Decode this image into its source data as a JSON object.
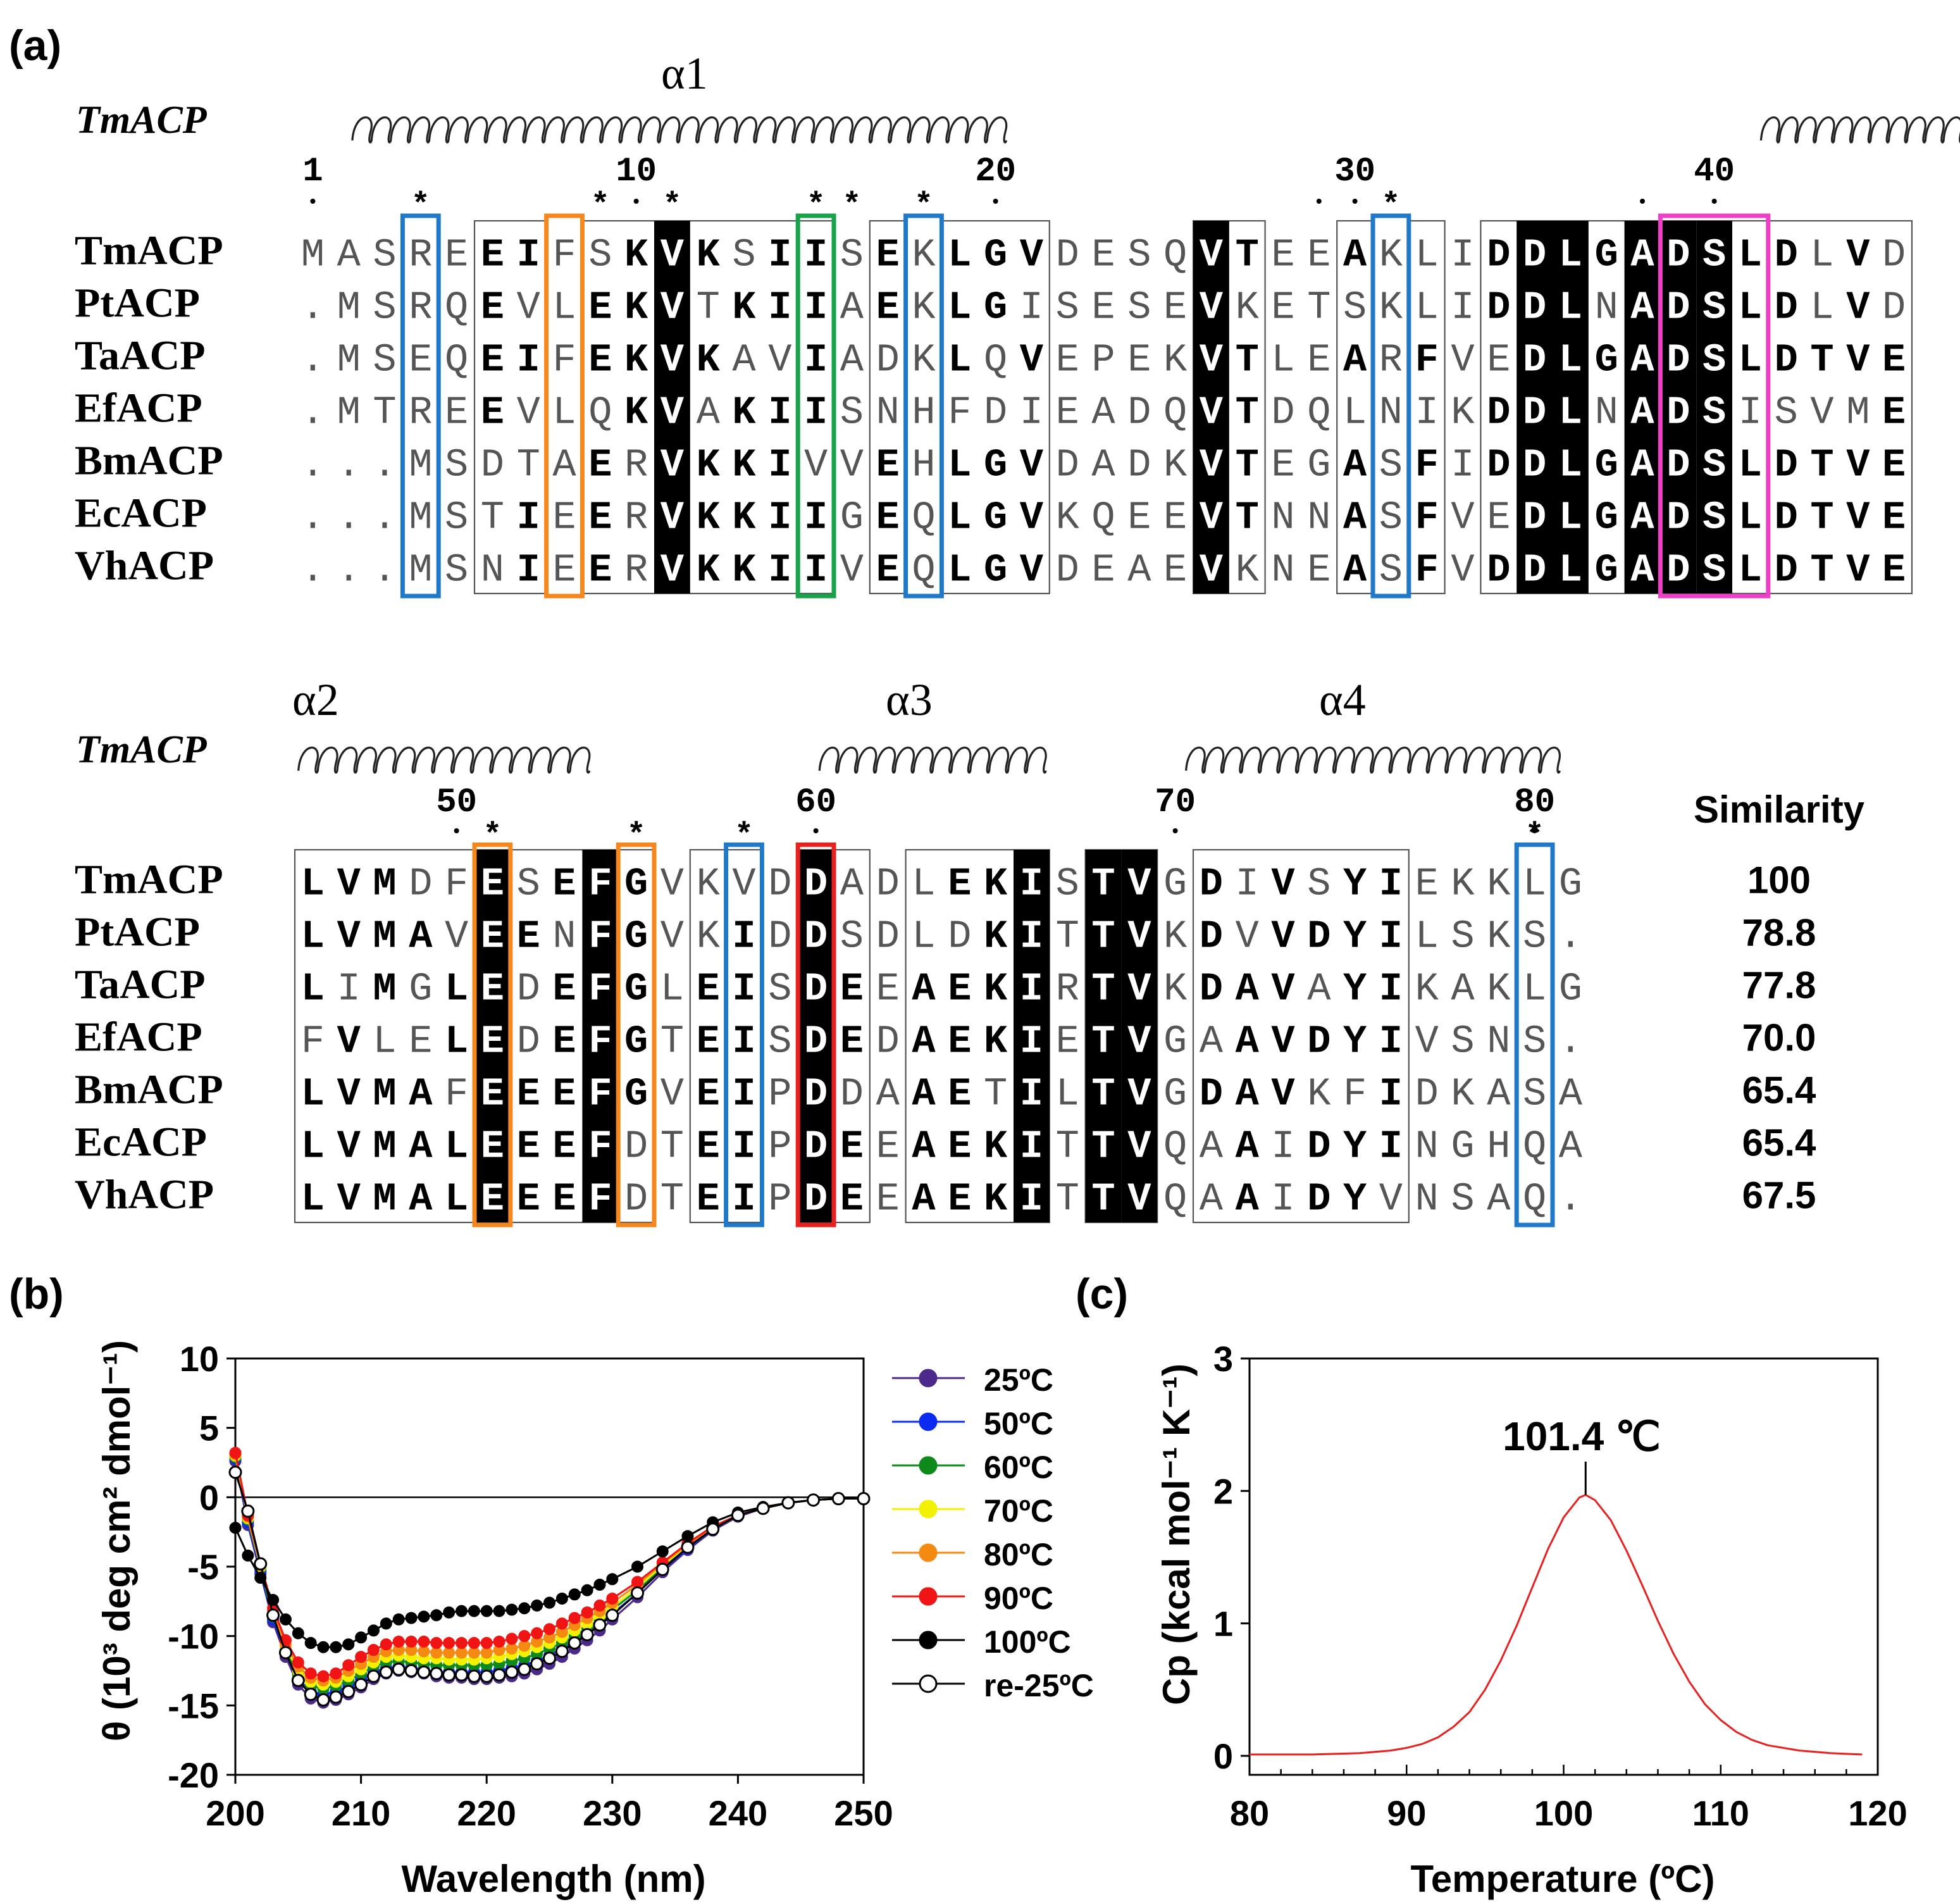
{
  "figure": {
    "panel_a_label": "(a)",
    "panel_b_label": "(b)",
    "panel_c_label": "(c)"
  },
  "alignment": {
    "structure_name": "TmACP",
    "helices": [
      "α1",
      "α2",
      "α3",
      "α4"
    ],
    "block1": {
      "number_labels": [
        "1",
        "10",
        "20",
        "30",
        "40"
      ],
      "rows": [
        {
          "name": "TmACP",
          "seq": "MASREEIFSKVKSIISEKLGVDESQVTEEAKLIDDLGADSLDLVD"
        },
        {
          "name": "PtACP",
          "seq": ".MSRQEVLEKVTKIIAEKLGISESEVKETSKLIDDLNADSLDLVD"
        },
        {
          "name": "TaACP",
          "seq": ".MSEQEIFEKVKAVIADKLQVEPEKVTLEARFVEDLGADSLDTVE"
        },
        {
          "name": "EfACP",
          "seq": ".MTREEVLQKVAKIISNHFDIEADQVTDQLNIKDDLNADSISVME"
        },
        {
          "name": "BmACP",
          "seq": "...MSDTAERVKKIVVEHLGVDADKVTEGASFIDDLGADSLDTVE"
        },
        {
          "name": "EcACP",
          "seq": "...MSTIEERVKKIIGEQLGVKQEEVTNNASFVEDLGADSLDTVE"
        },
        {
          "name": "VhACP",
          "seq": "...MSNIEERVKKIIVEQLGVDEAEVKNEASFVDDLGADSLDTVE"
        }
      ]
    },
    "block2": {
      "number_labels": [
        "50",
        "60",
        "70",
        "80"
      ],
      "similarity_header": "Similarity",
      "rows": [
        {
          "name": "TmACP",
          "seq": "LVMDFESEFGVKVDDADLEKISTVGDIVSYIEKKLG",
          "similarity": "100"
        },
        {
          "name": "PtACP",
          "seq": "LVMAVEENFGVKIDDSDLDKITTVKDVVDYILSKS.",
          "similarity": "78.8"
        },
        {
          "name": "TaACP",
          "seq": "LIMGLEDEFGLEISDEEAEKIRTVKDAVAYIKAKLG",
          "similarity": "77.8"
        },
        {
          "name": "EfACP",
          "seq": "FVLELEDEFGTEISDEDAEKIETVGAAVDYIVSNS.",
          "similarity": "70.0"
        },
        {
          "name": "BmACP",
          "seq": "LVMAFEEEFGVEIPDDAAETILTVGDAVKFIDKASA",
          "similarity": "65.4"
        },
        {
          "name": "EcACP",
          "seq": "LVMALEEEFDTEIPDEEAEKITTVQAAIDYINGHQA",
          "similarity": "65.4"
        },
        {
          "name": "VhACP",
          "seq": "LVMALEEEFDTEIPDEEAEKITTVQAAIDYVNSAQ.",
          "similarity": "67.5"
        }
      ]
    }
  },
  "chart_data": [
    {
      "type": "line",
      "xlabel": "Wavelength (nm)",
      "ylabel": "θ (10³ deg cm² dmol⁻¹)",
      "xlim": [
        200,
        250
      ],
      "ylim": [
        -20,
        10
      ],
      "xticks": [
        200,
        210,
        220,
        230,
        240,
        250
      ],
      "yticks": [
        -20,
        -15,
        -10,
        -5,
        0,
        5,
        10
      ],
      "legend_position": "right",
      "series": [
        {
          "name": "25ºC",
          "color": "#4b2a8c",
          "x": [
            200,
            201,
            202,
            203,
            204,
            205,
            206,
            207,
            208,
            209,
            210,
            211,
            212,
            213,
            214,
            215,
            216,
            217,
            218,
            219,
            220,
            221,
            222,
            223,
            224,
            225,
            226,
            227,
            228,
            229,
            230,
            232,
            234,
            236,
            238,
            240,
            242,
            244,
            246,
            248,
            250
          ],
          "y": [
            2.6,
            -2.0,
            -5.5,
            -9.0,
            -11.5,
            -13.5,
            -14.5,
            -14.8,
            -14.6,
            -14.2,
            -13.7,
            -13.1,
            -12.7,
            -12.5,
            -12.6,
            -12.7,
            -12.9,
            -13.0,
            -13.0,
            -13.1,
            -13.1,
            -13.0,
            -12.9,
            -12.7,
            -12.4,
            -12.0,
            -11.5,
            -10.9,
            -10.3,
            -9.6,
            -8.8,
            -7.2,
            -5.4,
            -3.8,
            -2.4,
            -1.4,
            -0.8,
            -0.4,
            -0.2,
            -0.1,
            -0.1
          ]
        },
        {
          "name": "50ºC",
          "color": "#0b2bf0",
          "x": [
            200,
            201,
            202,
            203,
            204,
            205,
            206,
            207,
            208,
            209,
            210,
            211,
            212,
            213,
            214,
            215,
            216,
            217,
            218,
            219,
            220,
            221,
            222,
            223,
            224,
            225,
            226,
            227,
            228,
            229,
            230,
            232,
            234,
            236,
            238,
            240,
            242,
            244,
            246,
            248,
            250
          ],
          "y": [
            2.8,
            -1.8,
            -5.3,
            -8.8,
            -11.2,
            -13.1,
            -14.0,
            -14.2,
            -14.0,
            -13.6,
            -13.1,
            -12.6,
            -12.3,
            -12.2,
            -12.3,
            -12.4,
            -12.6,
            -12.6,
            -12.6,
            -12.6,
            -12.6,
            -12.5,
            -12.3,
            -12.1,
            -11.8,
            -11.4,
            -10.9,
            -10.4,
            -9.8,
            -9.1,
            -8.4,
            -6.9,
            -5.2,
            -3.7,
            -2.3,
            -1.3,
            -0.8,
            -0.4,
            -0.2,
            -0.1,
            -0.1
          ]
        },
        {
          "name": "60ºC",
          "color": "#0e8a1c",
          "x": [
            200,
            201,
            202,
            203,
            204,
            205,
            206,
            207,
            208,
            209,
            210,
            211,
            212,
            213,
            214,
            215,
            216,
            217,
            218,
            219,
            220,
            221,
            222,
            223,
            224,
            225,
            226,
            227,
            228,
            229,
            230,
            232,
            234,
            236,
            238,
            240,
            242,
            244,
            246,
            248,
            250
          ],
          "y": [
            2.9,
            -1.6,
            -5.1,
            -8.6,
            -11.0,
            -12.8,
            -13.6,
            -13.8,
            -13.6,
            -13.2,
            -12.7,
            -12.2,
            -11.9,
            -11.8,
            -11.9,
            -12.0,
            -12.1,
            -12.1,
            -12.1,
            -12.1,
            -12.1,
            -12.0,
            -11.8,
            -11.6,
            -11.3,
            -10.9,
            -10.5,
            -10.0,
            -9.4,
            -8.8,
            -8.1,
            -6.7,
            -5.1,
            -3.6,
            -2.3,
            -1.3,
            -0.8,
            -0.4,
            -0.2,
            -0.1,
            -0.1
          ]
        },
        {
          "name": "70ºC",
          "color": "#f2f200",
          "x": [
            200,
            201,
            202,
            203,
            204,
            205,
            206,
            207,
            208,
            209,
            210,
            211,
            212,
            213,
            214,
            215,
            216,
            217,
            218,
            219,
            220,
            221,
            222,
            223,
            224,
            225,
            226,
            227,
            228,
            229,
            230,
            232,
            234,
            236,
            238,
            240,
            242,
            244,
            246,
            248,
            250
          ],
          "y": [
            3.0,
            -1.5,
            -5.0,
            -8.4,
            -10.8,
            -12.5,
            -13.3,
            -13.5,
            -13.3,
            -12.9,
            -12.4,
            -11.9,
            -11.5,
            -11.4,
            -11.5,
            -11.6,
            -11.6,
            -11.7,
            -11.7,
            -11.7,
            -11.6,
            -11.5,
            -11.3,
            -11.1,
            -10.8,
            -10.5,
            -10.1,
            -9.6,
            -9.1,
            -8.5,
            -7.9,
            -6.5,
            -4.9,
            -3.5,
            -2.2,
            -1.3,
            -0.8,
            -0.4,
            -0.2,
            -0.1,
            -0.1
          ]
        },
        {
          "name": "80ºC",
          "color": "#f58a12",
          "x": [
            200,
            201,
            202,
            203,
            204,
            205,
            206,
            207,
            208,
            209,
            210,
            211,
            212,
            213,
            214,
            215,
            216,
            217,
            218,
            219,
            220,
            221,
            222,
            223,
            224,
            225,
            226,
            227,
            228,
            229,
            230,
            232,
            234,
            236,
            238,
            240,
            242,
            244,
            246,
            248,
            250
          ],
          "y": [
            3.1,
            -1.4,
            -4.9,
            -8.2,
            -10.6,
            -12.2,
            -13.0,
            -13.2,
            -13.0,
            -12.5,
            -12.0,
            -11.5,
            -11.1,
            -11.0,
            -11.0,
            -11.1,
            -11.2,
            -11.2,
            -11.2,
            -11.2,
            -11.2,
            -11.0,
            -10.9,
            -10.7,
            -10.4,
            -10.1,
            -9.7,
            -9.2,
            -8.7,
            -8.2,
            -7.6,
            -6.3,
            -4.8,
            -3.4,
            -2.2,
            -1.3,
            -0.8,
            -0.4,
            -0.2,
            -0.1,
            -0.1
          ]
        },
        {
          "name": "90ºC",
          "color": "#f01414",
          "x": [
            200,
            201,
            202,
            203,
            204,
            205,
            206,
            207,
            208,
            209,
            210,
            211,
            212,
            213,
            214,
            215,
            216,
            217,
            218,
            219,
            220,
            221,
            222,
            223,
            224,
            225,
            226,
            227,
            228,
            229,
            230,
            232,
            234,
            236,
            238,
            240,
            242,
            244,
            246,
            248,
            250
          ],
          "y": [
            3.2,
            -1.3,
            -4.8,
            -8.0,
            -10.3,
            -11.9,
            -12.7,
            -12.9,
            -12.7,
            -12.1,
            -11.5,
            -11.0,
            -10.6,
            -10.4,
            -10.4,
            -10.4,
            -10.5,
            -10.5,
            -10.5,
            -10.5,
            -10.5,
            -10.4,
            -10.2,
            -10.0,
            -9.8,
            -9.5,
            -9.1,
            -8.7,
            -8.3,
            -7.8,
            -7.3,
            -6.1,
            -4.7,
            -3.3,
            -2.1,
            -1.3,
            -0.8,
            -0.4,
            -0.2,
            -0.1,
            -0.1
          ]
        },
        {
          "name": "100ºC",
          "color": "#000000",
          "x": [
            200,
            201,
            202,
            203,
            204,
            205,
            206,
            207,
            208,
            209,
            210,
            211,
            212,
            213,
            214,
            215,
            216,
            217,
            218,
            219,
            220,
            221,
            222,
            223,
            224,
            225,
            226,
            227,
            228,
            229,
            230,
            232,
            234,
            236,
            238,
            240,
            242,
            244,
            246,
            248,
            250
          ],
          "y": [
            -2.2,
            -4.2,
            -5.8,
            -7.4,
            -8.8,
            -9.8,
            -10.5,
            -10.8,
            -10.8,
            -10.6,
            -10.1,
            -9.6,
            -9.1,
            -8.8,
            -8.7,
            -8.6,
            -8.5,
            -8.3,
            -8.2,
            -8.2,
            -8.2,
            -8.2,
            -8.1,
            -8.0,
            -7.8,
            -7.6,
            -7.3,
            -7.0,
            -6.7,
            -6.3,
            -5.9,
            -5.0,
            -3.9,
            -2.8,
            -1.8,
            -1.1,
            -0.7,
            -0.4,
            -0.2,
            -0.1,
            -0.1
          ]
        },
        {
          "name": "re-25ºC",
          "color": "#000000",
          "hollow": true,
          "x": [
            200,
            201,
            202,
            203,
            204,
            205,
            206,
            207,
            208,
            209,
            210,
            211,
            212,
            213,
            214,
            215,
            216,
            217,
            218,
            219,
            220,
            221,
            222,
            223,
            224,
            225,
            226,
            227,
            228,
            229,
            230,
            232,
            234,
            236,
            238,
            240,
            242,
            244,
            246,
            248,
            250
          ],
          "y": [
            1.8,
            -1.0,
            -4.8,
            -8.5,
            -11.2,
            -13.2,
            -14.2,
            -14.6,
            -14.4,
            -14.0,
            -13.5,
            -12.9,
            -12.6,
            -12.4,
            -12.5,
            -12.6,
            -12.7,
            -12.8,
            -12.8,
            -12.9,
            -12.9,
            -12.8,
            -12.6,
            -12.4,
            -12.0,
            -11.6,
            -11.1,
            -10.5,
            -9.9,
            -9.2,
            -8.5,
            -6.9,
            -5.2,
            -3.6,
            -2.3,
            -1.3,
            -0.8,
            -0.4,
            -0.2,
            -0.1,
            -0.1
          ]
        }
      ]
    },
    {
      "type": "line",
      "xlabel": "Temperature (ºC)",
      "ylabel": "Cp (kcal mol⁻¹ K⁻¹)",
      "xlim": [
        80,
        120
      ],
      "ylim": [
        0,
        3
      ],
      "xticks": [
        80,
        90,
        100,
        110,
        120
      ],
      "yticks": [
        0,
        1,
        2,
        3
      ],
      "annotation": "101.4 ℃",
      "peak": {
        "x": 101.4,
        "y": 1.97
      },
      "series": [
        {
          "color": "#e82020",
          "x": [
            80,
            84,
            87,
            89,
            90,
            91,
            92,
            93,
            94,
            95,
            96,
            97,
            98,
            99,
            100,
            101,
            101.4,
            102,
            103,
            104,
            105,
            106,
            107,
            108,
            109,
            110,
            111,
            112,
            113,
            115,
            117,
            119
          ],
          "y": [
            0.01,
            0.01,
            0.02,
            0.04,
            0.06,
            0.09,
            0.14,
            0.22,
            0.33,
            0.5,
            0.72,
            0.98,
            1.27,
            1.56,
            1.8,
            1.95,
            1.97,
            1.93,
            1.78,
            1.55,
            1.29,
            1.02,
            0.77,
            0.56,
            0.39,
            0.27,
            0.18,
            0.12,
            0.08,
            0.04,
            0.02,
            0.01
          ]
        }
      ]
    }
  ]
}
